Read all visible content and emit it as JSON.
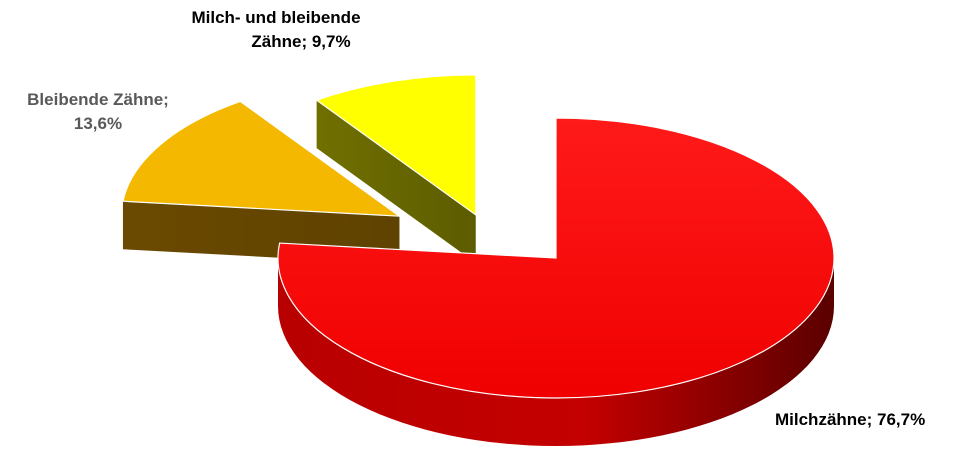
{
  "chart_data": {
    "type": "pie",
    "style": "3d-exploded",
    "title": "",
    "legend": "none",
    "categories": [
      "Milchzähne",
      "Bleibende Zähne",
      "Milch- und bleibende Zähne"
    ],
    "values": [
      76.7,
      13.6,
      9.7
    ],
    "unit": "%",
    "colors": [
      "#ff0000",
      "#f5b800",
      "#ffff00"
    ],
    "side_colors": [
      "#8a0000",
      "#6e5200",
      "#6e6e00"
    ],
    "data_labels": {
      "milch": {
        "line1": "Milchzähne; 76,7%"
      },
      "bleibend": {
        "line1": "Bleibende Zähne;",
        "line2": "13,6%"
      },
      "beide": {
        "line1": "Milch- und bleibende",
        "line2": "Zähne; 9,7%"
      }
    }
  }
}
